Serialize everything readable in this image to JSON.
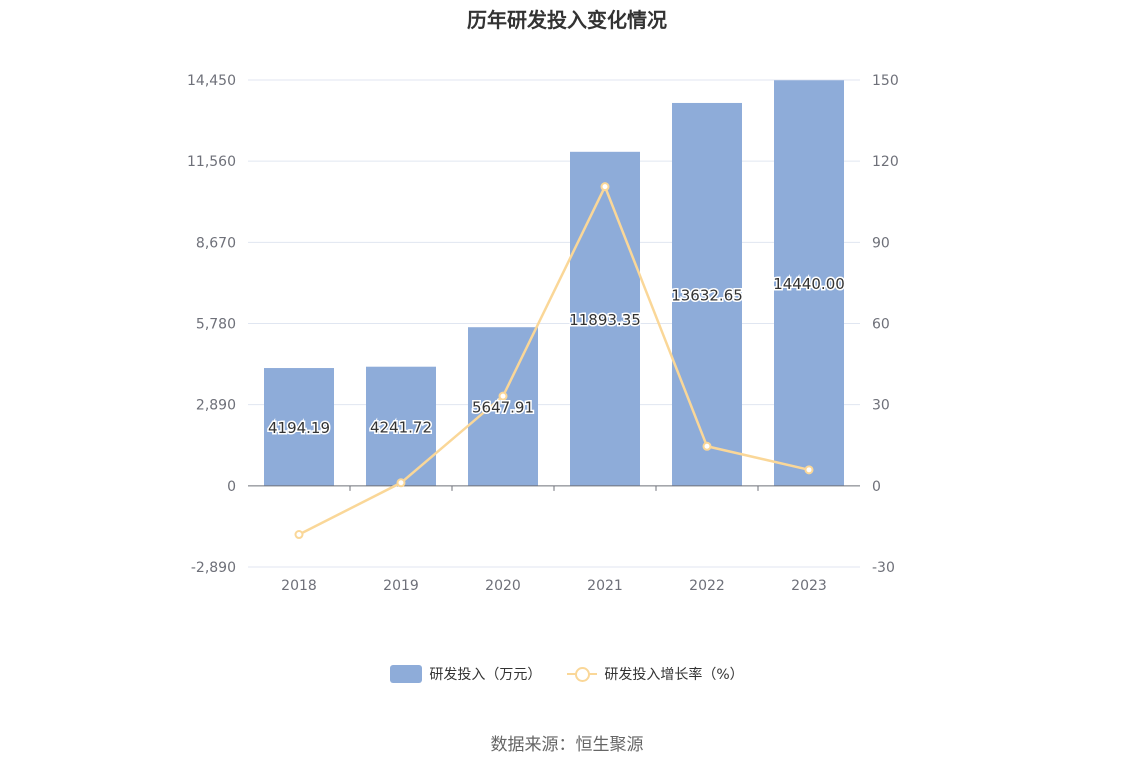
{
  "chart_data": {
    "type": "bar",
    "title": "历年研发投入变化情况",
    "categories": [
      "2018",
      "2019",
      "2020",
      "2021",
      "2022",
      "2023"
    ],
    "series": [
      {
        "name": "研发投入（万元）",
        "type": "bar",
        "axis": "left",
        "color": "#8eacd9",
        "values": [
          4194.19,
          4241.72,
          5647.91,
          11893.35,
          13632.65,
          14440.0
        ],
        "labels": [
          "4194.19",
          "4241.72",
          "5647.91",
          "11893.35",
          "13632.65",
          "14440.00"
        ]
      },
      {
        "name": "研发投入增长率（%）",
        "type": "line",
        "axis": "right",
        "color": "#fad798",
        "values": [
          -18,
          1.13,
          33.15,
          110.58,
          14.62,
          5.92
        ]
      }
    ],
    "y_left": {
      "ticks": [
        "14,450",
        "11,560",
        "8,670",
        "5,780",
        "2,890",
        "0",
        "-2,890"
      ],
      "ylim": [
        -2890,
        14450
      ]
    },
    "y_right": {
      "ticks": [
        "150",
        "120",
        "90",
        "60",
        "30",
        "0",
        "-30"
      ],
      "ylim": [
        -30,
        150
      ]
    },
    "grid": true,
    "legend": "bottom-center"
  },
  "source_text": "数据来源：恒生聚源"
}
